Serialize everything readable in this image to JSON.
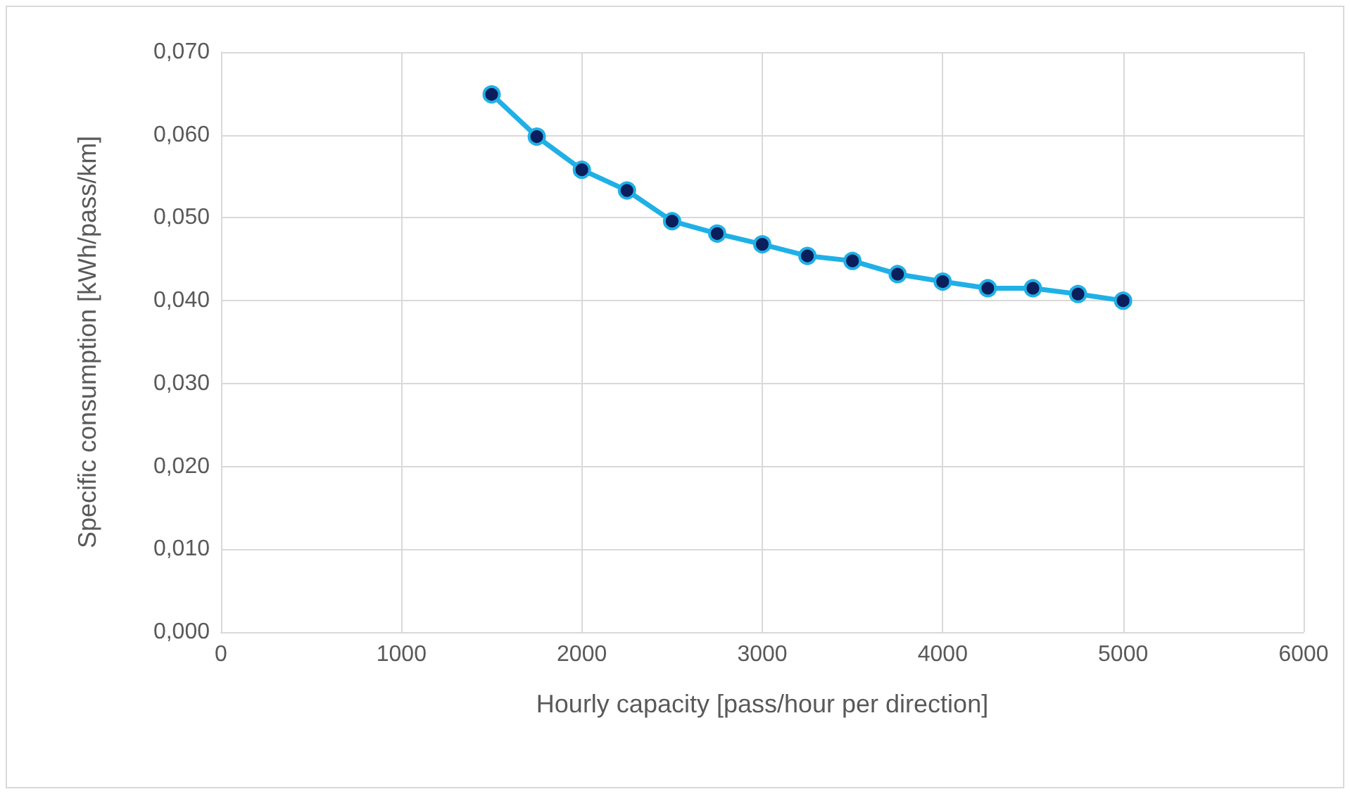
{
  "chart_data": {
    "type": "line",
    "xlabel": "Hourly capacity [pass/hour per direction]",
    "ylabel": "Specific consumption [kWh/pass/km]",
    "x": [
      1500,
      1750,
      2000,
      2250,
      2500,
      2750,
      3000,
      3250,
      3500,
      3750,
      4000,
      4250,
      4500,
      4750,
      5000
    ],
    "series": [
      {
        "color": "#1fb0e6",
        "values": [
          0.0649,
          0.0598,
          0.0558,
          0.0533,
          0.0496,
          0.0481,
          0.0468,
          0.0454,
          0.0448,
          0.0432,
          0.0423,
          0.0415,
          0.0415,
          0.0408,
          0.04
        ]
      }
    ],
    "xlim": [
      0,
      6000
    ],
    "xticks": [
      0,
      1000,
      2000,
      3000,
      4000,
      5000,
      6000
    ],
    "ylim": [
      0,
      0.07
    ],
    "yticks": [
      {
        "value": 0,
        "label": "0,000"
      },
      {
        "value": 0.01,
        "label": "0,010"
      },
      {
        "value": 0.02,
        "label": "0,020"
      },
      {
        "value": 0.03,
        "label": "0,030"
      },
      {
        "value": 0.04,
        "label": "0,040"
      },
      {
        "value": 0.05,
        "label": "0,050"
      },
      {
        "value": 0.06,
        "label": "0,060"
      },
      {
        "value": 0.07,
        "label": "0,070"
      }
    ],
    "grid": true,
    "marker": "circle",
    "line_style": "solid"
  }
}
